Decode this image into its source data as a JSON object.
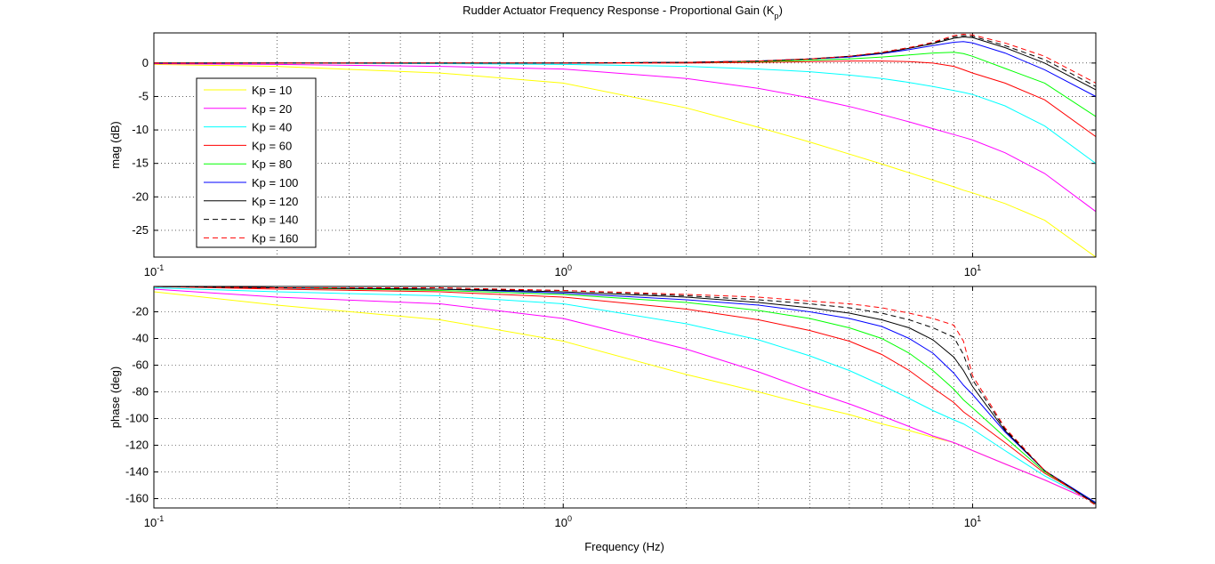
{
  "chart_data": {
    "type": "line",
    "title_main": "Rudder Actuator Frequency Response - Proportional Gain (K",
    "title_sub": "p",
    "title_close": ")",
    "xlabel": "Frequency (Hz)",
    "x_scale": "log",
    "xlim": [
      0.1,
      20
    ],
    "x_ticks": [
      {
        "base": "10",
        "exp": "-1",
        "value": 0.1
      },
      {
        "base": "10",
        "exp": "0",
        "value": 1
      },
      {
        "base": "10",
        "exp": "1",
        "value": 10
      }
    ],
    "grid": "on",
    "legend": {
      "placement": "upper-left of magnitude plot"
    },
    "series_styles": [
      {
        "name": "Kp = 10",
        "color": "#ffff00",
        "dash": "solid"
      },
      {
        "name": "Kp = 20",
        "color": "#ff00ff",
        "dash": "solid"
      },
      {
        "name": "Kp = 40",
        "color": "#00ffff",
        "dash": "solid"
      },
      {
        "name": "Kp = 60",
        "color": "#ff0000",
        "dash": "solid"
      },
      {
        "name": "Kp = 80",
        "color": "#00ff00",
        "dash": "solid"
      },
      {
        "name": "Kp = 100",
        "color": "#0000ff",
        "dash": "solid"
      },
      {
        "name": "Kp = 120",
        "color": "#000000",
        "dash": "solid"
      },
      {
        "name": "Kp = 140",
        "color": "#000000",
        "dash": "dashed"
      },
      {
        "name": "Kp = 160",
        "color": "#ff0000",
        "dash": "dashed"
      }
    ],
    "x": [
      0.1,
      0.2,
      0.5,
      1,
      2,
      3,
      4,
      5,
      6,
      7,
      8,
      9,
      9.5,
      10,
      12,
      15,
      20
    ],
    "subplots": [
      {
        "name": "magnitude",
        "ylabel": "mag (dB)",
        "ylim": [
          -29,
          4.5
        ],
        "yticks": [
          0,
          -5,
          -10,
          -15,
          -20,
          -25
        ],
        "series": [
          [
            -0.2,
            -0.5,
            -1.5,
            -3.0,
            -6.7,
            -9.6,
            -11.8,
            -13.6,
            -15.1,
            -16.4,
            -17.5,
            -18.5,
            -19.0,
            -19.4,
            -21.0,
            -23.5,
            -29.0
          ],
          [
            -0.1,
            -0.2,
            -0.5,
            -0.9,
            -2.3,
            -3.8,
            -5.2,
            -6.5,
            -7.7,
            -8.8,
            -9.8,
            -10.7,
            -11.1,
            -11.5,
            -13.4,
            -16.5,
            -22.2
          ],
          [
            0,
            0,
            -0.1,
            -0.2,
            -0.5,
            -0.9,
            -1.3,
            -1.8,
            -2.3,
            -2.9,
            -3.5,
            -4.1,
            -4.4,
            -4.7,
            -6.4,
            -9.4,
            -15.0
          ],
          [
            0,
            0,
            0,
            0,
            0,
            0.1,
            0.2,
            0.3,
            0.3,
            0.2,
            0,
            -0.5,
            -1.0,
            -1.5,
            -3.0,
            -5.5,
            -11.0
          ],
          [
            0,
            0,
            0,
            0,
            0.1,
            0.2,
            0.4,
            0.6,
            0.9,
            1.2,
            1.5,
            1.6,
            1.4,
            1.0,
            -0.8,
            -3.0,
            -8.0
          ],
          [
            0,
            0,
            0,
            0,
            0.1,
            0.3,
            0.6,
            0.9,
            1.4,
            2.0,
            2.6,
            3.1,
            3.2,
            3.0,
            1.5,
            -1.0,
            -5.0
          ],
          [
            0,
            0,
            0,
            0,
            0.1,
            0.3,
            0.6,
            1.0,
            1.5,
            2.2,
            2.9,
            3.7,
            3.9,
            3.8,
            2.3,
            0.0,
            -4.0
          ],
          [
            0,
            0,
            0,
            0,
            0.1,
            0.3,
            0.6,
            1.0,
            1.6,
            2.3,
            3.0,
            3.9,
            4.1,
            4.0,
            2.6,
            0.5,
            -3.5
          ],
          [
            0,
            0,
            0,
            0,
            0.1,
            0.3,
            0.6,
            1.0,
            1.6,
            2.3,
            3.1,
            4.1,
            4.3,
            4.2,
            3.0,
            1.0,
            -3.0
          ]
        ]
      },
      {
        "name": "phase",
        "ylabel": "phase (deg)",
        "ylim": [
          -167,
          -1
        ],
        "yticks": [
          -20,
          -40,
          -60,
          -80,
          -100,
          -120,
          -140,
          -160
        ],
        "series": [
          [
            -5,
            -15,
            -26,
            -42,
            -67,
            -80,
            -90,
            -97,
            -104,
            -109,
            -114,
            -118,
            -121,
            -124,
            -134,
            -146,
            -163
          ],
          [
            -3,
            -9,
            -14,
            -25,
            -48,
            -65,
            -79,
            -89,
            -98,
            -106,
            -113,
            -118,
            -121,
            -124,
            -134,
            -146,
            -163
          ],
          [
            -2,
            -5,
            -8,
            -14,
            -29,
            -41,
            -53,
            -64,
            -75,
            -85,
            -94,
            -101,
            -104,
            -108,
            -124,
            -143,
            -163
          ],
          [
            -1,
            -3,
            -5,
            -9,
            -18,
            -26,
            -34,
            -42,
            -52,
            -64,
            -77,
            -88,
            -95,
            -100,
            -118,
            -141,
            -163
          ],
          [
            -1,
            -2,
            -4,
            -7,
            -13,
            -19,
            -25,
            -32,
            -40,
            -51,
            -64,
            -78,
            -86,
            -92,
            -114,
            -140,
            -163
          ],
          [
            -1,
            -2,
            -3,
            -6,
            -11,
            -15,
            -20,
            -25,
            -31,
            -40,
            -51,
            -66,
            -75,
            -82,
            -110,
            -139,
            -163
          ],
          [
            -1,
            -2,
            -3,
            -5,
            -9,
            -13,
            -17,
            -21,
            -26,
            -32,
            -41,
            -54,
            -64,
            -76,
            -109,
            -139,
            -164
          ],
          [
            -1,
            -2,
            -3,
            -4,
            -8,
            -11,
            -14,
            -17,
            -21,
            -26,
            -32,
            -39,
            -52,
            -71,
            -108,
            -139,
            -165
          ],
          [
            -1,
            -2,
            -2,
            -4,
            -7,
            -9,
            -12,
            -14,
            -17,
            -21,
            -25,
            -30,
            -42,
            -68,
            -107,
            -139,
            -165
          ]
        ]
      }
    ]
  }
}
